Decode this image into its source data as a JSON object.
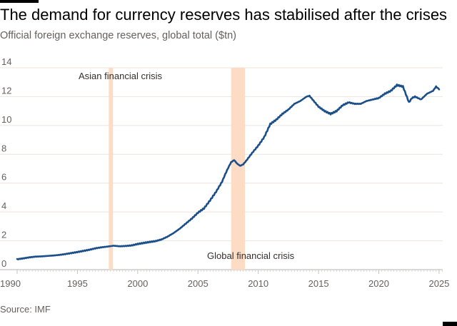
{
  "header": {
    "title": "The demand for currency reserves has stabilised after the crises",
    "subtitle": "Official foreign exchange reserves, global total ($tn)"
  },
  "footer": {
    "source": "Source: IMF"
  },
  "colors": {
    "line": "#1b4f8a",
    "band": "#fcdcc4",
    "grid": "#ebe4de"
  },
  "chart_data": {
    "type": "line",
    "title": "The demand for currency reserves has stabilised after the crises",
    "subtitle": "Official foreign exchange reserves, global total ($tn)",
    "xlabel": "",
    "ylabel": "$tn",
    "xlim": [
      1990,
      2025.3
    ],
    "ylim": [
      0,
      14
    ],
    "x_ticks": [
      1990,
      1995,
      2000,
      2005,
      2010,
      2015,
      2020,
      2025
    ],
    "y_ticks": [
      0,
      2,
      4,
      6,
      8,
      10,
      12,
      14
    ],
    "grid": true,
    "annotations": [
      {
        "label": "Asian financial crisis",
        "start": 1997.6,
        "end": 1997.95
      },
      {
        "label": "Global financial crisis",
        "start": 2007.75,
        "end": 2008.9
      }
    ],
    "series": [
      {
        "name": "Global official foreign exchange reserves",
        "x": [
          1990,
          1990.5,
          1991,
          1991.5,
          1992,
          1992.5,
          1993,
          1993.5,
          1994,
          1994.5,
          1995,
          1995.5,
          1996,
          1996.5,
          1997,
          1997.5,
          1998,
          1998.5,
          1999,
          1999.5,
          2000,
          2000.5,
          2001,
          2001.5,
          2002,
          2002.5,
          2003,
          2003.5,
          2004,
          2004.5,
          2005,
          2005.5,
          2006,
          2006.5,
          2007,
          2007.25,
          2007.5,
          2007.75,
          2008,
          2008.25,
          2008.5,
          2008.75,
          2009,
          2009.5,
          2010,
          2010.5,
          2011,
          2011.5,
          2012,
          2012.5,
          2013,
          2013.5,
          2014,
          2014.25,
          2014.5,
          2015,
          2015.5,
          2016,
          2016.5,
          2017,
          2017.5,
          2018,
          2018.5,
          2019,
          2019.5,
          2020,
          2020.5,
          2021,
          2021.5,
          2022,
          2022.5,
          2022.75,
          2023,
          2023.5,
          2024,
          2024.5,
          2024.75,
          2025
        ],
        "values": [
          0.72,
          0.78,
          0.85,
          0.9,
          0.92,
          0.95,
          0.98,
          1.02,
          1.08,
          1.15,
          1.22,
          1.3,
          1.38,
          1.48,
          1.55,
          1.6,
          1.66,
          1.62,
          1.64,
          1.68,
          1.78,
          1.85,
          1.92,
          1.98,
          2.1,
          2.3,
          2.55,
          2.85,
          3.2,
          3.55,
          3.95,
          4.25,
          4.8,
          5.4,
          6.1,
          6.6,
          7.05,
          7.45,
          7.6,
          7.35,
          7.2,
          7.3,
          7.55,
          8.1,
          8.6,
          9.2,
          10.1,
          10.4,
          10.8,
          11.1,
          11.5,
          11.7,
          12.0,
          12.05,
          11.8,
          11.3,
          11.0,
          10.8,
          11.0,
          11.4,
          11.6,
          11.5,
          11.5,
          11.7,
          11.8,
          11.9,
          12.2,
          12.4,
          12.8,
          12.7,
          11.6,
          11.9,
          12.0,
          11.8,
          12.2,
          12.4,
          12.7,
          12.5
        ]
      }
    ]
  }
}
